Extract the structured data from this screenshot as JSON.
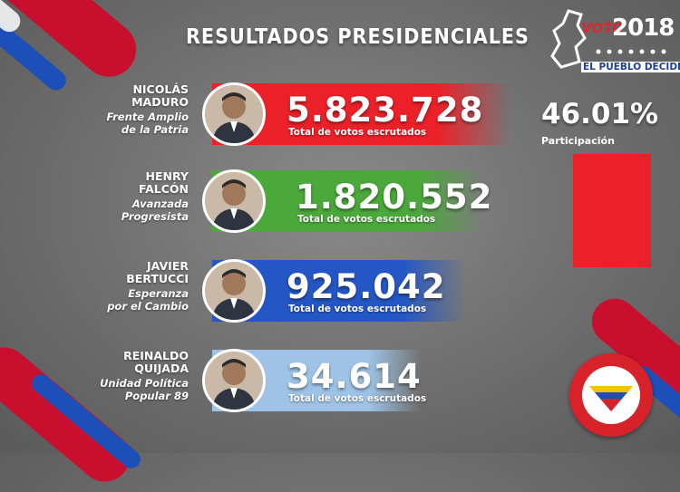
{
  "title": "RESULTADOS PRESIDENCIALES",
  "logo": {
    "voto": "VOTO",
    "year": "2018",
    "tagline": "EL PUEBLO DECIDE"
  },
  "participation": {
    "value": "46.01%",
    "label": "Participación",
    "fraction": 0.4601
  },
  "colors": {
    "red": "#ec2028",
    "green": "#4aa93a",
    "blue": "#2457c5",
    "light_blue": "#9ec3e6"
  },
  "candidates": [
    {
      "name_line1": "NICOLÁS",
      "name_line2": "MADURO",
      "party_line1": "Frente Amplio",
      "party_line2": "de la Patria",
      "votes": "5.823.728",
      "votes_label": "Total de votos escrutados",
      "color": "#ec2028",
      "photo_icon": "candidate-photo"
    },
    {
      "name_line1": "HENRY",
      "name_line2": "FALCÓN",
      "party_line1": "Avanzada",
      "party_line2": "Progresista",
      "votes": "1.820.552",
      "votes_label": "Total de votos escrutados",
      "color": "#4aa93a",
      "photo_icon": "candidate-photo"
    },
    {
      "name_line1": "JAVIER",
      "name_line2": "BERTUCCI",
      "party_line1": "Esperanza",
      "party_line2": "por el Cambio",
      "votes": "925.042",
      "votes_label": "Total de votos escrutados",
      "color": "#2457c5",
      "photo_icon": "candidate-photo"
    },
    {
      "name_line1": "REINALDO",
      "name_line2": "QUIJADA",
      "party_line1": "Unidad Política",
      "party_line2": "Popular 89",
      "votes": "34.614",
      "votes_label": "Total de votos escrutados",
      "color": "#9ec3e6",
      "photo_icon": "candidate-photo"
    }
  ]
}
